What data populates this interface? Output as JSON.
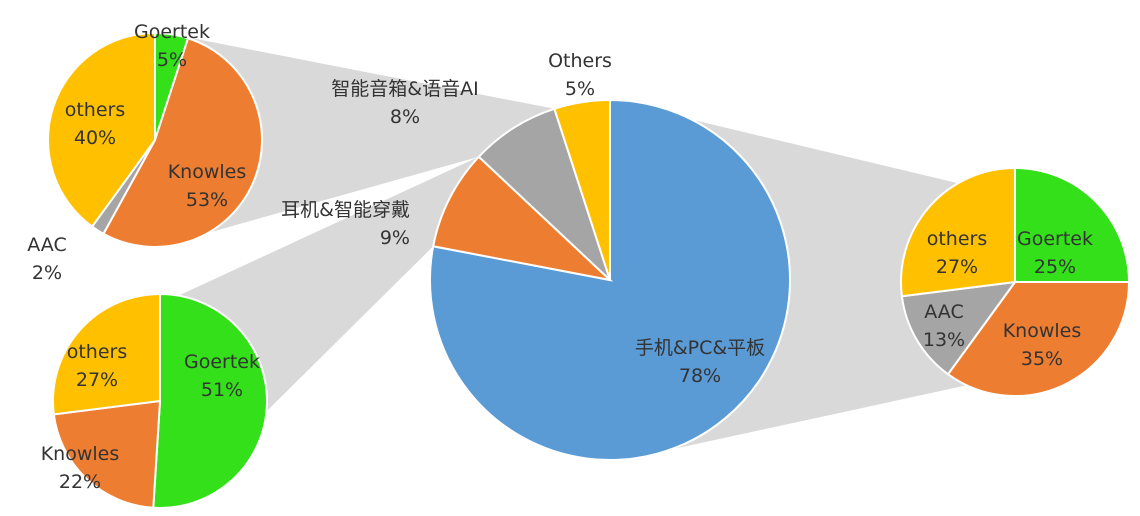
{
  "chart_data": [
    {
      "type": "pie",
      "id": "main",
      "categories": [
        "手机&PC&平板",
        "耳机&智能穿戴",
        "智能音箱&语音AI",
        "Others"
      ],
      "values": [
        78,
        9,
        8,
        5
      ],
      "labels": [
        "手机&PC&平板",
        "耳机&智能穿戴",
        "智能音箱&语音AI",
        "Others"
      ],
      "value_labels": [
        "78%",
        "9%",
        "8%",
        "5%"
      ],
      "colors": [
        "#5b9bd5",
        "#ed7d31",
        "#a5a5a5",
        "#ffc000"
      ]
    },
    {
      "type": "pie",
      "id": "speaker_ai",
      "parent_category": "智能音箱&语音AI",
      "categories": [
        "Goertek",
        "Knowles",
        "AAC",
        "others"
      ],
      "values": [
        5,
        53,
        2,
        40
      ],
      "labels": [
        "Goertek",
        "Knowles",
        "AAC",
        "others"
      ],
      "value_labels": [
        "5%",
        "53%",
        "2%",
        "40%"
      ],
      "colors": [
        "#33e01a",
        "#ed7d31",
        "#a5a5a5",
        "#ffc000"
      ]
    },
    {
      "type": "pie",
      "id": "earphone_wearable",
      "parent_category": "耳机&智能穿戴",
      "categories": [
        "Goertek",
        "Knowles",
        "others"
      ],
      "values": [
        51,
        22,
        27
      ],
      "labels": [
        "Goertek",
        "Knowles",
        "others"
      ],
      "value_labels": [
        "51%",
        "22%",
        "27%"
      ],
      "colors": [
        "#33e01a",
        "#ed7d31",
        "#ffc000"
      ]
    },
    {
      "type": "pie",
      "id": "phone_pc_tablet",
      "parent_category": "手机&PC&平板",
      "categories": [
        "Goertek",
        "Knowles",
        "AAC",
        "others"
      ],
      "values": [
        25,
        35,
        13,
        27
      ],
      "labels": [
        "Goertek",
        "Knowles",
        "AAC",
        "others"
      ],
      "value_labels": [
        "25%",
        "35%",
        "13%",
        "27%"
      ],
      "colors": [
        "#33e01a",
        "#ed7d31",
        "#a5a5a5",
        "#ffc000"
      ]
    }
  ],
  "style": {
    "connector_color": "#d9d9d9",
    "slice_border": "#ffffff"
  }
}
